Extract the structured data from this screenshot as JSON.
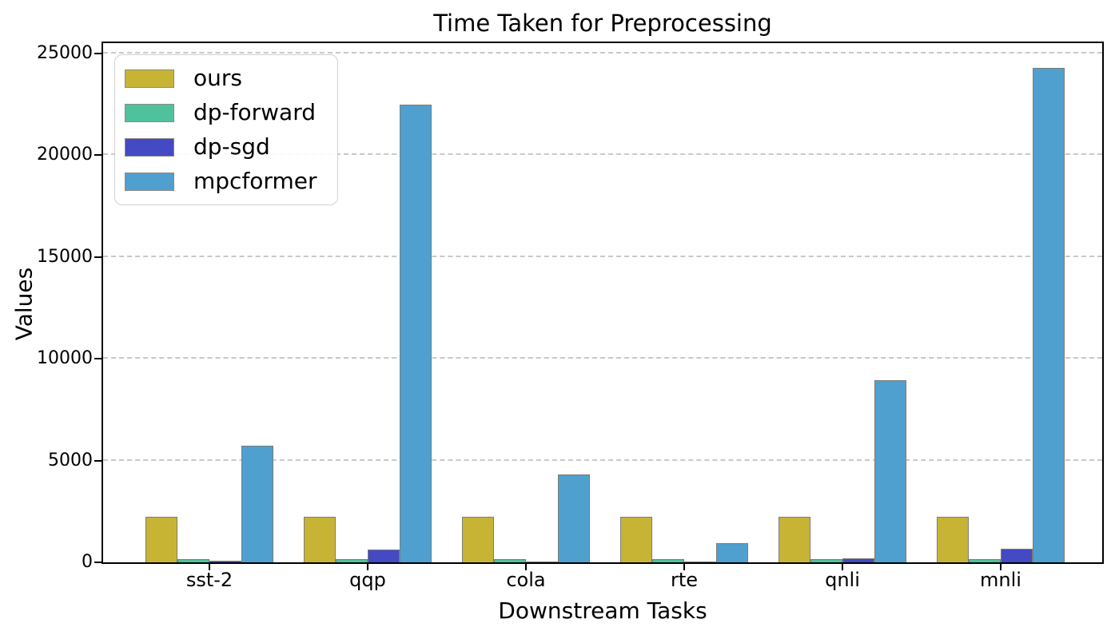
{
  "chart_data": {
    "type": "bar",
    "title": "Time Taken for Preprocessing",
    "xlabel": "Downstream Tasks",
    "ylabel": "Values",
    "categories": [
      "sst-2",
      "qqp",
      "cola",
      "rte",
      "qnli",
      "mnli"
    ],
    "series": [
      {
        "name": "ours",
        "color": "#c7b435",
        "values": [
          2250,
          2250,
          2250,
          2250,
          2250,
          2250
        ]
      },
      {
        "name": "dp-forward",
        "color": "#50c19d",
        "values": [
          140,
          140,
          140,
          140,
          140,
          140
        ]
      },
      {
        "name": "dp-sgd",
        "color": "#4449c4",
        "values": [
          100,
          620,
          40,
          25,
          200,
          650
        ]
      },
      {
        "name": "mpcformer",
        "color": "#4fa0cf",
        "values": [
          5730,
          22500,
          4330,
          950,
          8930,
          24300
        ]
      }
    ],
    "yticks": [
      0,
      5000,
      10000,
      15000,
      20000,
      25000
    ],
    "ylim": [
      0,
      25500
    ],
    "grid": "horizontal-dashed",
    "gridline_color": "#c9c9c9",
    "bar_edge_color": "#7c7c78",
    "legend_position": "upper-left"
  }
}
